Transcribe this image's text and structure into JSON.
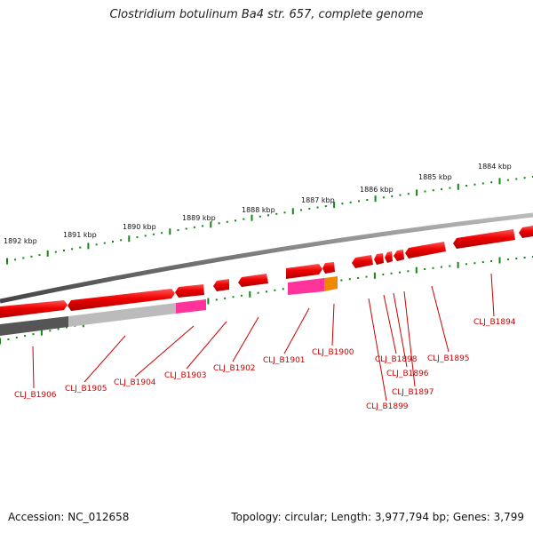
{
  "title": "Clostridium botulinum Ba4 str. 657, complete genome",
  "accession": "Accession: NC_012658",
  "topology": "Topology: circular; Length: 3,977,794 bp; Genes: 3,799",
  "kbp_labels": [
    "1892 kbp",
    "1891 kbp",
    "1890 kbp",
    "1889 kbp",
    "1888 kbp",
    "1887 kbp",
    "1886 kbp",
    "1885 kbp",
    "1884 kbp"
  ],
  "gene_labels": [
    "CLJ_B1906",
    "CLJ_B1905",
    "CLJ_B1904",
    "CLJ_B1903",
    "CLJ_B1902",
    "CLJ_B1901",
    "CLJ_B1900",
    "CLJ_B1898",
    "CLJ_B1899",
    "CLJ_B1896",
    "CLJ_B1897",
    "CLJ_B1895",
    "CLJ_B1894"
  ],
  "colors": {
    "gene": "#ee0000",
    "pink": "#ff3399",
    "magenta": "#dd22aa",
    "orange": "#ee8800",
    "backbone": "#888888",
    "dark_grey": "#555555",
    "light_grey": "#bbbbbb",
    "tick": "#118811",
    "leader": "#cc0000"
  }
}
